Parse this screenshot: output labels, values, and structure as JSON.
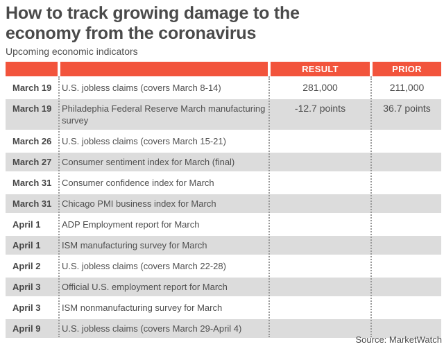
{
  "chart_data": {
    "type": "table",
    "title": "How to track growing damage to the economy from the coronavirus",
    "title_lines": [
      "How to track growing damage to the",
      "economy from the coronavirus"
    ],
    "subtitle": "Upcoming economic indicators",
    "header_labels": {
      "date": "",
      "indicator": "",
      "result": "RESULT",
      "prior": "PRIOR"
    },
    "rows": [
      {
        "date": "March 19",
        "indicator": "U.S. jobless claims (covers March 8-14)",
        "result": "281,000",
        "prior": "211,000"
      },
      {
        "date": "March 19",
        "indicator": "Philadephia Federal Reserve March manufacturing survey",
        "result": "-12.7 points",
        "prior": "36.7 points"
      },
      {
        "date": "March 26",
        "indicator": "U.S. jobless claims (covers March 15-21)",
        "result": "",
        "prior": ""
      },
      {
        "date": "March 27",
        "indicator": "Consumer sentiment index for March (final)",
        "result": "",
        "prior": ""
      },
      {
        "date": "March 31",
        "indicator": "Consumer confidence index for March",
        "result": "",
        "prior": ""
      },
      {
        "date": "March 31",
        "indicator": "Chicago PMI business index for March",
        "result": "",
        "prior": ""
      },
      {
        "date": "April 1",
        "indicator": "ADP Employment report for March",
        "result": "",
        "prior": ""
      },
      {
        "date": "April 1",
        "indicator": "ISM manufacturing survey for March",
        "result": "",
        "prior": ""
      },
      {
        "date": "April 2",
        "indicator": "U.S. jobless claims (covers March 22-28)",
        "result": "",
        "prior": ""
      },
      {
        "date": "April 3",
        "indicator": "Official U.S. employment report for March",
        "result": "",
        "prior": ""
      },
      {
        "date": "April 3",
        "indicator": "ISM nonmanufacturing survey for March",
        "result": "",
        "prior": ""
      },
      {
        "date": "April 9",
        "indicator": "U.S. jobless claims (covers March 29-April 4)",
        "result": "",
        "prior": ""
      }
    ],
    "source": "Source: MarketWatch",
    "layout": {
      "legend": false,
      "shading": "every second data row shaded gray",
      "column_separators": "vertical dotted lines",
      "value_alignment": "center"
    }
  },
  "colors": {
    "accent_orange": "#F2543C",
    "shaded_row_gray": "#DCDCDC",
    "title_text": "#4A4A4A",
    "body_text": "#4F4F4F",
    "divider_dots": "#9A9A9A",
    "header_text": "#FFFFFF"
  }
}
